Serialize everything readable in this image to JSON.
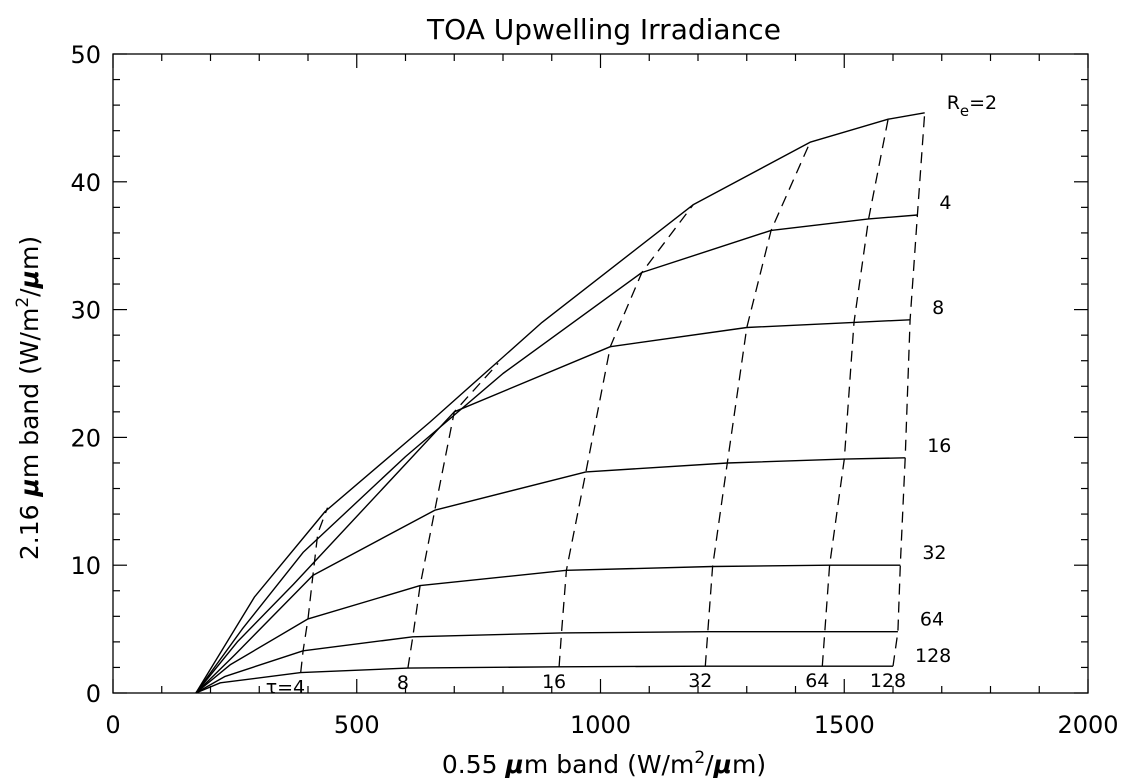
{
  "chart_data": {
    "type": "line",
    "title": "TOA Upwelling Irradiance",
    "xlabel": {
      "pre": "0.55 ",
      "mu": "μ",
      "mid": "m band (W/m",
      "sup": "2",
      "post": "/",
      "mu2": "μ",
      "end": "m)"
    },
    "ylabel": {
      "pre": "2.16 ",
      "mu": "μ",
      "mid": "m band (W/m",
      "sup": "2",
      "post": "/",
      "mu2": "μ",
      "end": "m)"
    },
    "xlim": [
      0,
      2000
    ],
    "ylim": [
      0,
      50
    ],
    "x_ticks": [
      "0",
      "500",
      "1000",
      "1500",
      "2000"
    ],
    "y_ticks": [
      "0",
      "10",
      "20",
      "30",
      "40",
      "50"
    ],
    "x_tick_values": [
      0,
      500,
      1000,
      1500,
      2000
    ],
    "y_tick_values": [
      0,
      10,
      20,
      30,
      40,
      50
    ],
    "origin_point": [
      170,
      0
    ],
    "re_series": [
      {
        "label_main": "R",
        "label_sub": "e",
        "label_tail": "=2",
        "points": [
          [
            170,
            0
          ],
          [
            290,
            7.5
          ],
          [
            435,
            14.2
          ],
          [
            650,
            21.2
          ],
          [
            880,
            29.0
          ],
          [
            1190,
            38.2
          ],
          [
            1430,
            43.1
          ],
          [
            1590,
            44.9
          ],
          [
            1665,
            45.4
          ]
        ]
      },
      {
        "label_main": "4",
        "label_sub": "",
        "label_tail": "",
        "points": [
          [
            170,
            0
          ],
          [
            265,
            5.0
          ],
          [
            390,
            11.0
          ],
          [
            600,
            18.5
          ],
          [
            800,
            25.0
          ],
          [
            1085,
            32.9
          ],
          [
            1350,
            36.2
          ],
          [
            1550,
            37.1
          ],
          [
            1650,
            37.4
          ]
        ]
      },
      {
        "label_main": "8",
        "label_sub": "",
        "label_tail": "",
        "points": [
          [
            170,
            0
          ],
          [
            255,
            4.0
          ],
          [
            370,
            8.5
          ],
          [
            700,
            22.0
          ],
          [
            1020,
            27.1
          ],
          [
            1300,
            28.6
          ],
          [
            1520,
            29.0
          ],
          [
            1635,
            29.2
          ]
        ]
      },
      {
        "label_main": "16",
        "label_sub": "",
        "label_tail": "",
        "points": [
          [
            170,
            0
          ],
          [
            250,
            3.0
          ],
          [
            410,
            9.2
          ],
          [
            660,
            14.3
          ],
          [
            970,
            17.3
          ],
          [
            1260,
            18.0
          ],
          [
            1500,
            18.3
          ],
          [
            1625,
            18.4
          ]
        ]
      },
      {
        "label_main": "32",
        "label_sub": "",
        "label_tail": "",
        "points": [
          [
            170,
            0
          ],
          [
            240,
            2.2
          ],
          [
            400,
            5.8
          ],
          [
            630,
            8.4
          ],
          [
            930,
            9.6
          ],
          [
            1230,
            9.9
          ],
          [
            1470,
            10.0
          ],
          [
            1615,
            10.0
          ]
        ]
      },
      {
        "label_main": "64",
        "label_sub": "",
        "label_tail": "",
        "points": [
          [
            170,
            0
          ],
          [
            230,
            1.3
          ],
          [
            390,
            3.3
          ],
          [
            615,
            4.4
          ],
          [
            920,
            4.7
          ],
          [
            1220,
            4.8
          ],
          [
            1460,
            4.8
          ],
          [
            1610,
            4.8
          ]
        ]
      },
      {
        "label_main": "128",
        "label_sub": "",
        "label_tail": "",
        "points": [
          [
            170,
            0
          ],
          [
            220,
            0.8
          ],
          [
            385,
            1.6
          ],
          [
            605,
            1.95
          ],
          [
            915,
            2.05
          ],
          [
            1215,
            2.1
          ],
          [
            1455,
            2.1
          ],
          [
            1600,
            2.1
          ]
        ]
      }
    ],
    "tau_series": [
      {
        "label": "τ=4",
        "points": [
          [
            385,
            1.6
          ],
          [
            390,
            3.3
          ],
          [
            400,
            5.8
          ],
          [
            410,
            9.2
          ],
          [
            420,
            12.5
          ],
          [
            440,
            14.5
          ]
        ]
      },
      {
        "label": "8",
        "points": [
          [
            605,
            1.95
          ],
          [
            615,
            4.4
          ],
          [
            630,
            8.4
          ],
          [
            660,
            14.3
          ],
          [
            700,
            22.0
          ],
          [
            790,
            25.8
          ]
        ]
      },
      {
        "label": "16",
        "points": [
          [
            915,
            2.05
          ],
          [
            920,
            4.7
          ],
          [
            930,
            9.6
          ],
          [
            970,
            17.3
          ],
          [
            1020,
            27.1
          ],
          [
            1085,
            32.9
          ],
          [
            1190,
            38.2
          ]
        ]
      },
      {
        "label": "32",
        "points": [
          [
            1215,
            2.1
          ],
          [
            1220,
            4.8
          ],
          [
            1230,
            9.9
          ],
          [
            1260,
            18.0
          ],
          [
            1300,
            28.6
          ],
          [
            1350,
            36.2
          ],
          [
            1430,
            43.1
          ]
        ]
      },
      {
        "label": "64",
        "points": [
          [
            1455,
            2.1
          ],
          [
            1460,
            4.8
          ],
          [
            1470,
            10.0
          ],
          [
            1500,
            18.3
          ],
          [
            1520,
            29.0
          ],
          [
            1550,
            37.1
          ],
          [
            1590,
            44.9
          ]
        ]
      },
      {
        "label": "128",
        "points": [
          [
            1600,
            2.1
          ],
          [
            1610,
            4.8
          ],
          [
            1615,
            10.0
          ],
          [
            1625,
            18.4
          ],
          [
            1635,
            29.2
          ],
          [
            1650,
            37.4
          ],
          [
            1665,
            45.4
          ]
        ]
      }
    ],
    "grid": false,
    "line_color": "#000000"
  }
}
